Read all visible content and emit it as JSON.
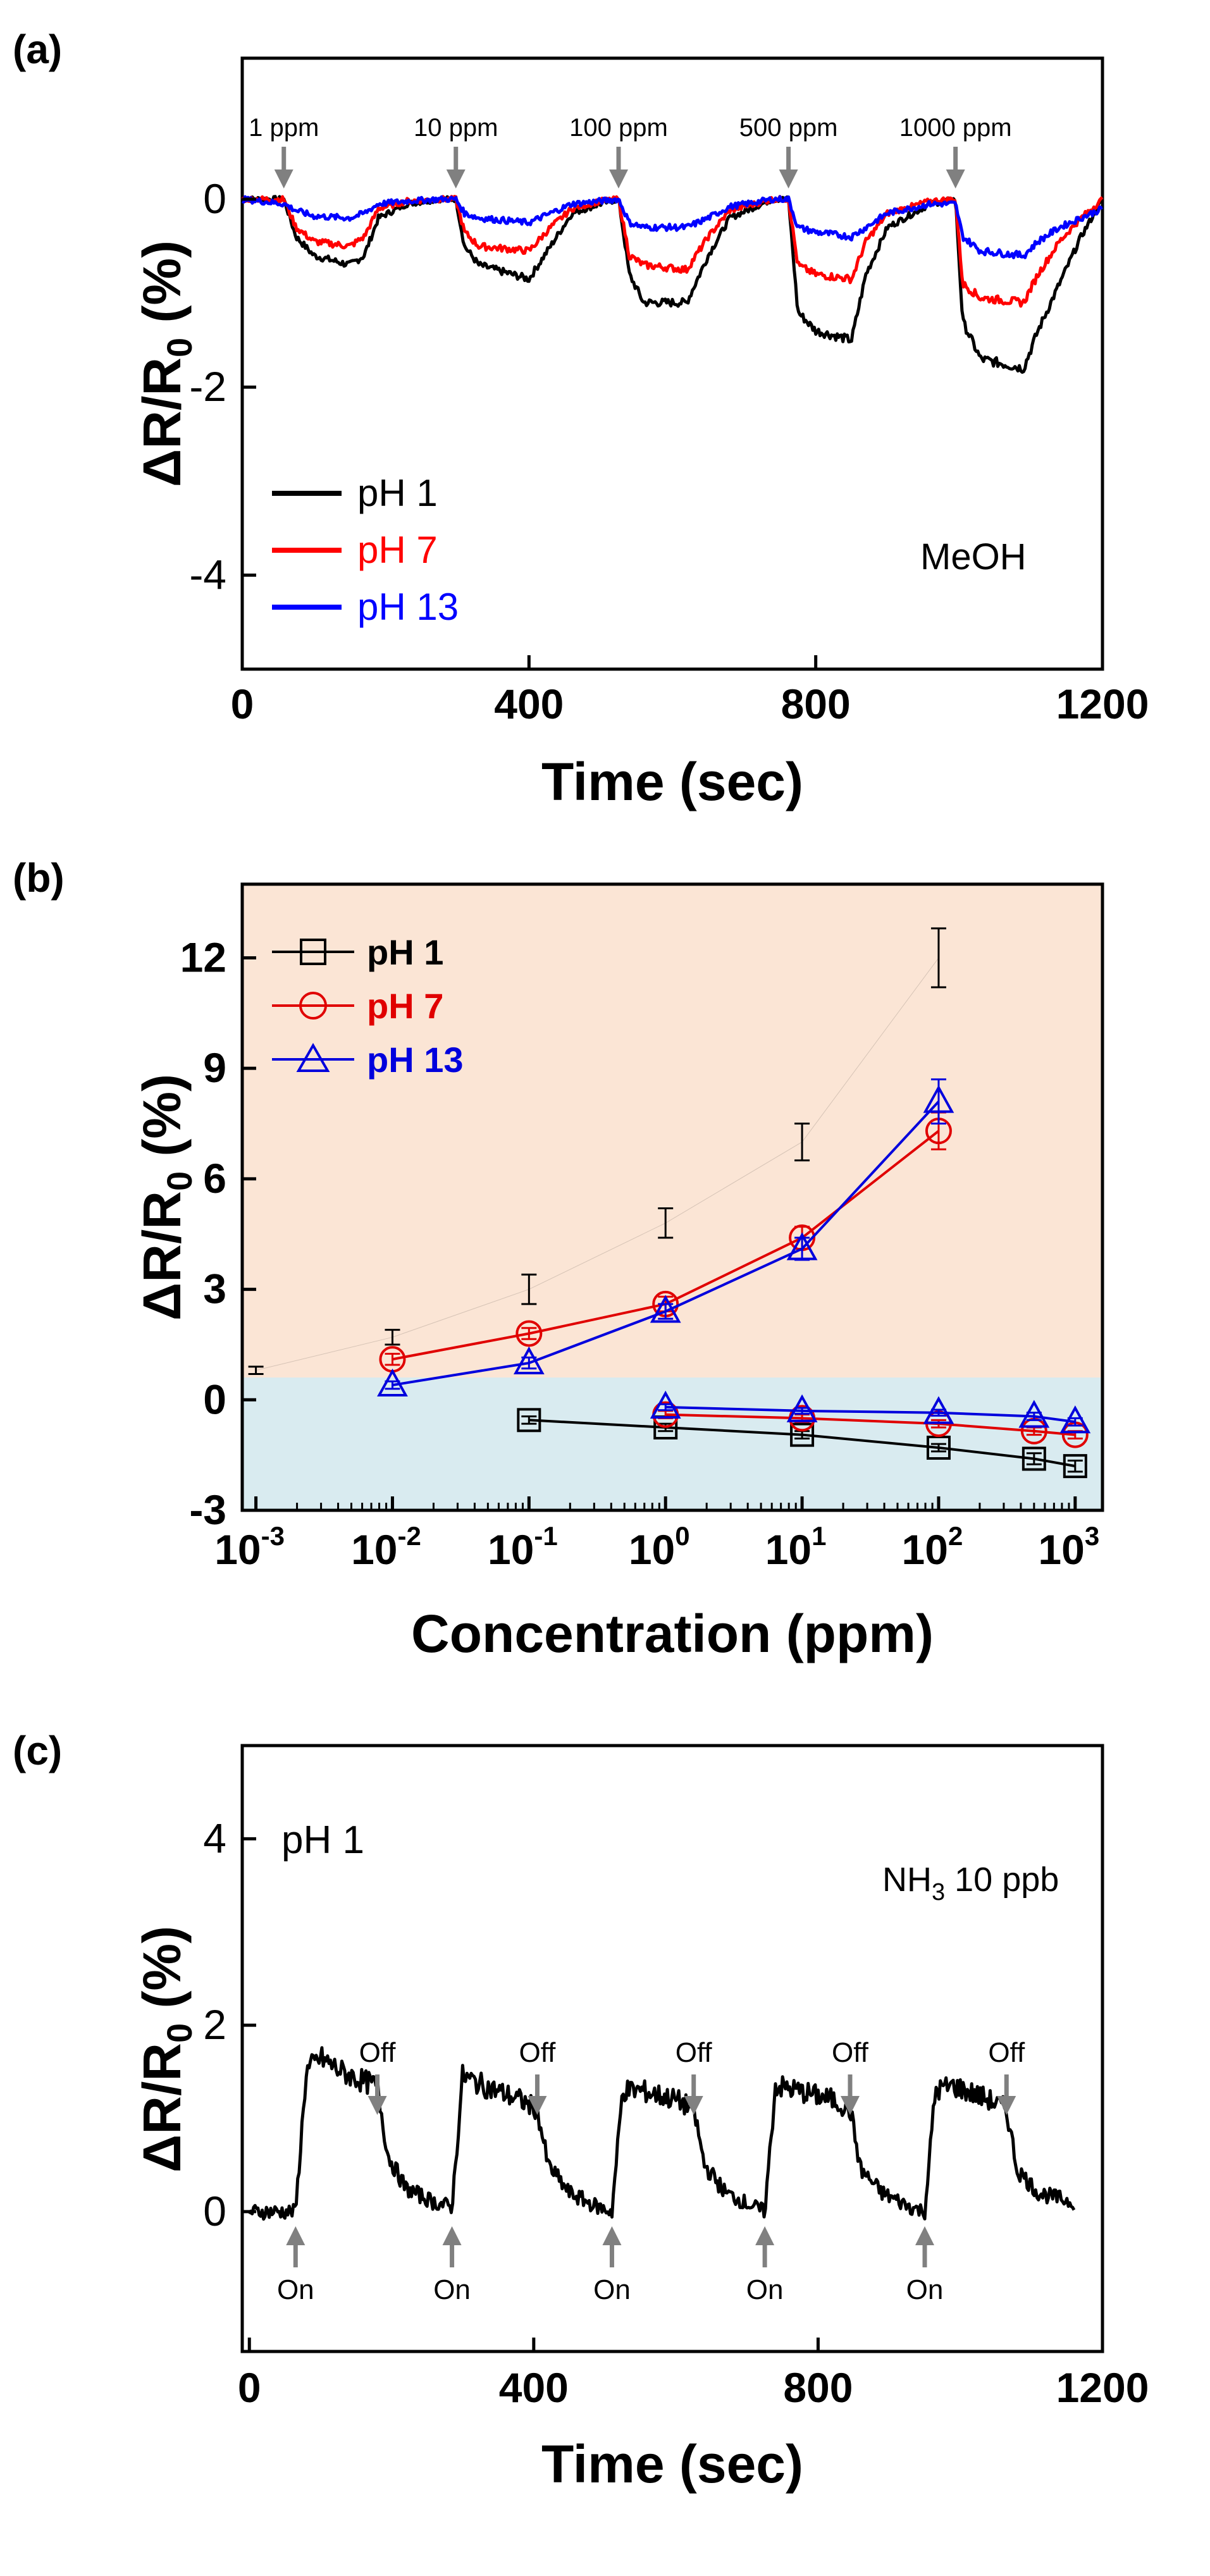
{
  "chart_data": [
    {
      "panel": "(a)",
      "type": "line",
      "title": "",
      "xlabel": "Time (sec)",
      "ylabel": "ΔR/R0 (%)",
      "xlim": [
        0,
        1200
      ],
      "ylim": [
        -5,
        1.5
      ],
      "xticks": [
        "0",
        "400",
        "800",
        "1200"
      ],
      "yticks": [
        "0",
        "-2",
        "-4"
      ],
      "annotations": [
        "1 ppm",
        "10 ppm",
        "100 ppm",
        "500 ppm",
        "1000 ppm"
      ],
      "annotation_x": [
        58,
        298,
        525,
        762,
        995
      ],
      "text_label": "MeOH",
      "legend": [
        "pH 1",
        "pH 7",
        "pH 13"
      ],
      "legend_colors": [
        "#000000",
        "#ff0000",
        "#0000ff"
      ],
      "series": [
        {
          "name": "pH 1",
          "color": "#000000",
          "x": [
            0,
            58,
            75,
            100,
            150,
            170,
            190,
            230,
            275,
            298,
            310,
            330,
            400,
            430,
            460,
            500,
            525,
            540,
            560,
            620,
            650,
            680,
            740,
            762,
            775,
            800,
            850,
            870,
            900,
            960,
            995,
            1005,
            1030,
            1090,
            1110,
            1140,
            1170,
            1200
          ],
          "y": [
            0,
            0,
            -0.4,
            -0.6,
            -0.7,
            -0.6,
            -0.2,
            -0.05,
            0,
            0,
            -0.5,
            -0.7,
            -0.85,
            -0.5,
            -0.15,
            -0.05,
            0,
            -0.8,
            -1.1,
            -1.1,
            -0.6,
            -0.2,
            0,
            0,
            -1.2,
            -1.4,
            -1.5,
            -0.8,
            -0.3,
            -0.05,
            0,
            -1.3,
            -1.7,
            -1.8,
            -1.4,
            -0.9,
            -0.4,
            0
          ]
        },
        {
          "name": "pH 7",
          "color": "#ff0000",
          "x": [
            0,
            58,
            75,
            100,
            150,
            170,
            190,
            230,
            275,
            298,
            310,
            330,
            400,
            430,
            460,
            500,
            525,
            540,
            560,
            620,
            650,
            680,
            740,
            762,
            775,
            800,
            850,
            870,
            900,
            960,
            995,
            1005,
            1030,
            1090,
            1110,
            1140,
            1170,
            1200
          ],
          "y": [
            0,
            0,
            -0.3,
            -0.45,
            -0.5,
            -0.4,
            -0.1,
            -0.02,
            0,
            0,
            -0.35,
            -0.5,
            -0.55,
            -0.3,
            -0.1,
            -0.02,
            0,
            -0.6,
            -0.7,
            -0.75,
            -0.4,
            -0.12,
            0,
            0,
            -0.7,
            -0.8,
            -0.85,
            -0.45,
            -0.15,
            -0.02,
            0,
            -0.9,
            -1.05,
            -1.1,
            -0.8,
            -0.45,
            -0.2,
            0
          ]
        },
        {
          "name": "pH 13",
          "color": "#0000ff",
          "x": [
            0,
            58,
            75,
            100,
            150,
            170,
            190,
            230,
            275,
            298,
            310,
            330,
            400,
            430,
            460,
            500,
            525,
            540,
            560,
            620,
            650,
            680,
            740,
            762,
            775,
            800,
            850,
            870,
            900,
            960,
            995,
            1005,
            1030,
            1090,
            1110,
            1140,
            1170,
            1200
          ],
          "y": [
            0,
            -0.05,
            -0.12,
            -0.18,
            -0.2,
            -0.15,
            -0.05,
            -0.02,
            0,
            0,
            -0.15,
            -0.2,
            -0.25,
            -0.15,
            -0.05,
            -0.02,
            0,
            -0.25,
            -0.3,
            -0.3,
            -0.2,
            -0.08,
            0,
            0,
            -0.3,
            -0.35,
            -0.4,
            -0.3,
            -0.15,
            -0.05,
            -0.05,
            -0.4,
            -0.55,
            -0.6,
            -0.45,
            -0.3,
            -0.2,
            -0.1
          ]
        }
      ]
    },
    {
      "panel": "(b)",
      "type": "scatter",
      "title": "",
      "xlabel": "Concentration (ppm)",
      "ylabel": "ΔR/R0 (%)",
      "xscale": "log",
      "xlim_log10": [
        -3.1,
        3.2
      ],
      "ylim": [
        -3,
        14
      ],
      "xticks_base": [
        "10",
        "10",
        "10",
        "10",
        "10",
        "10",
        "10"
      ],
      "xticks_exp": [
        "-3",
        "-2",
        "-1",
        "0",
        "1",
        "2",
        "3"
      ],
      "yticks": [
        "12",
        "9",
        "6",
        "3",
        "0",
        "-3"
      ],
      "background": {
        "upper": "#fbe5d5",
        "lower": "#d9ebf0",
        "split_y": 0.2
      },
      "legend": [
        "pH 1",
        "pH 7",
        "pH 13"
      ],
      "legend_colors": [
        "#000000",
        "#e00000",
        "#0000dd"
      ],
      "series": [
        {
          "name": "pH 1 (positive)",
          "color": "#000000",
          "marker": "square",
          "log10_x": [
            -3,
            -2,
            -1,
            0,
            1,
            2
          ],
          "y": [
            0.8,
            1.7,
            3.0,
            4.8,
            7.0,
            12.0
          ],
          "yerr": [
            0.1,
            0.2,
            0.4,
            0.4,
            0.5,
            0.8
          ]
        },
        {
          "name": "pH 7",
          "color": "#e00000",
          "marker": "circle",
          "log10_x": [
            -2,
            -1,
            0,
            1,
            2
          ],
          "y": [
            1.1,
            1.8,
            2.6,
            4.4,
            7.3
          ],
          "yerr": [
            0.15,
            0.15,
            0.2,
            0.3,
            0.5
          ]
        },
        {
          "name": "pH 13",
          "color": "#0000dd",
          "marker": "triangle",
          "log10_x": [
            -2,
            -1,
            0,
            1,
            2
          ],
          "y": [
            0.4,
            1.0,
            2.4,
            4.1,
            8.1
          ],
          "yerr": [
            0.1,
            0.15,
            0.2,
            0.3,
            0.6
          ]
        },
        {
          "name": "pH 1 (MeOH)",
          "color": "#000000",
          "marker": "square",
          "log10_x": [
            -1,
            0,
            1,
            2,
            2.699,
            3
          ],
          "y": [
            -0.55,
            -0.75,
            -0.95,
            -1.3,
            -1.6,
            -1.8
          ],
          "yerr": [
            0.1,
            0.1,
            0.1,
            0.1,
            0.15,
            0.15
          ]
        },
        {
          "name": "pH 7 (MeOH)",
          "color": "#e00000",
          "marker": "circle",
          "log10_x": [
            0,
            1,
            2,
            2.699,
            3
          ],
          "y": [
            -0.4,
            -0.5,
            -0.65,
            -0.85,
            -0.95
          ],
          "yerr": [
            0.1,
            0.1,
            0.1,
            0.1,
            0.1
          ]
        },
        {
          "name": "pH 13 (MeOH)",
          "color": "#0000dd",
          "marker": "triangle",
          "log10_x": [
            0,
            1,
            2,
            2.699,
            3
          ],
          "y": [
            -0.2,
            -0.3,
            -0.35,
            -0.45,
            -0.6
          ],
          "yerr": [
            0.08,
            0.08,
            0.08,
            0.1,
            0.1
          ]
        }
      ]
    },
    {
      "panel": "(c)",
      "type": "line",
      "title": "",
      "xlabel": "Time (sec)",
      "ylabel": "ΔR/R0 (%)",
      "xlim": [
        -10,
        1200
      ],
      "ylim": [
        -1.5,
        5
      ],
      "xticks": [
        "0",
        "400",
        "800",
        "1200"
      ],
      "yticks": [
        "4",
        "2",
        "0"
      ],
      "text_label_1": "pH 1",
      "text_label_2_main": "NH",
      "text_label_2_sub": "3",
      "text_label_2_tail": " 10 ppb",
      "on_label": "On",
      "off_label": "Off",
      "on_x": [
        65,
        285,
        510,
        725,
        950
      ],
      "off_x": [
        180,
        405,
        625,
        845,
        1065
      ],
      "series": [
        {
          "name": "pH 1",
          "color": "#000000",
          "x": [
            0,
            65,
            80,
            100,
            130,
            160,
            180,
            195,
            220,
            260,
            285,
            300,
            330,
            380,
            405,
            420,
            450,
            490,
            510,
            525,
            550,
            600,
            625,
            640,
            670,
            710,
            725,
            740,
            770,
            820,
            845,
            860,
            890,
            930,
            950,
            965,
            990,
            1040,
            1065,
            1080,
            1110,
            1160
          ],
          "y": [
            0,
            0,
            1.5,
            1.65,
            1.5,
            1.4,
            1.35,
            0.6,
            0.25,
            0.1,
            0.05,
            1.45,
            1.35,
            1.2,
            1.1,
            0.5,
            0.2,
            0.05,
            0.0,
            1.3,
            1.3,
            1.2,
            1.1,
            0.5,
            0.2,
            0.05,
            0.0,
            1.35,
            1.3,
            1.2,
            1.1,
            0.45,
            0.2,
            0.05,
            0.0,
            1.3,
            1.35,
            1.2,
            1.1,
            0.45,
            0.2,
            0.1
          ]
        }
      ]
    }
  ]
}
